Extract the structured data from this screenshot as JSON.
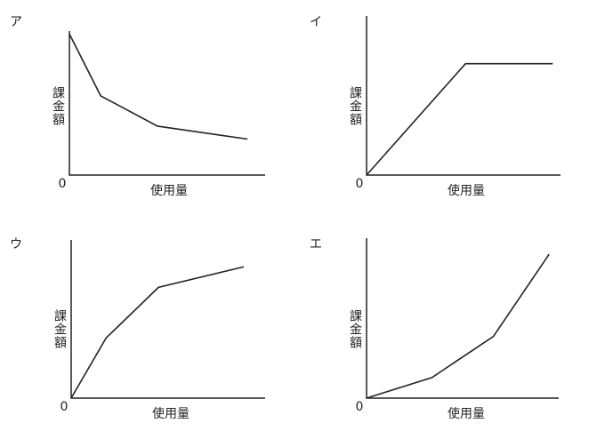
{
  "chart_data": [
    {
      "type": "line",
      "title": "ア",
      "xlabel": "使用量",
      "ylabel": "課金額",
      "x": [
        0,
        16,
        45,
        91
      ],
      "values": [
        98,
        55,
        34,
        25
      ],
      "xlim": [
        0,
        100
      ],
      "ylim": [
        0,
        100
      ],
      "yticks": [
        0
      ]
    },
    {
      "type": "line",
      "title": "イ",
      "xlabel": "使用量",
      "ylabel": "課金額",
      "x": [
        0,
        51,
        96
      ],
      "values": [
        0,
        70,
        70
      ],
      "xlim": [
        0,
        100
      ],
      "ylim": [
        0,
        100
      ],
      "yticks": [
        0
      ]
    },
    {
      "type": "line",
      "title": "ウ",
      "xlabel": "使用量",
      "ylabel": "課金額",
      "x": [
        0,
        18,
        45,
        89
      ],
      "values": [
        0,
        38,
        70,
        83
      ],
      "xlim": [
        0,
        100
      ],
      "ylim": [
        0,
        100
      ],
      "yticks": [
        0
      ]
    },
    {
      "type": "line",
      "title": "エ",
      "xlabel": "使用量",
      "ylabel": "課金額",
      "x": [
        0,
        34,
        66,
        95
      ],
      "values": [
        0,
        13,
        39,
        91
      ],
      "xlim": [
        0,
        100
      ],
      "ylim": [
        0,
        100
      ],
      "yticks": [
        0
      ]
    }
  ]
}
